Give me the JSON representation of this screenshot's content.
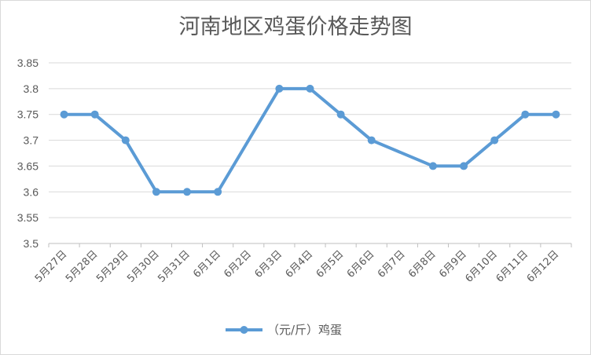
{
  "chart_data": {
    "type": "line",
    "title": "河南地区鸡蛋价格走势图",
    "categories": [
      "5月27日",
      "5月28日",
      "5月29日",
      "5月30日",
      "5月31日",
      "6月1日",
      "6月2日",
      "6月3日",
      "6月4日",
      "6月5日",
      "6月6日",
      "6月7日",
      "6月8日",
      "6月9日",
      "6月10日",
      "6月11日",
      "6月12日"
    ],
    "series": [
      {
        "name": "（元/斤）鸡蛋",
        "values": [
          3.75,
          3.75,
          3.7,
          3.6,
          3.6,
          3.6,
          null,
          3.8,
          3.8,
          3.75,
          3.7,
          null,
          3.65,
          3.65,
          3.7,
          3.75,
          3.75
        ],
        "color": "#5b9bd5"
      }
    ],
    "ylim": [
      3.5,
      3.85
    ],
    "yticks": [
      "3.5",
      "3.55",
      "3.6",
      "3.65",
      "3.7",
      "3.75",
      "3.8",
      "3.85"
    ],
    "grid": true,
    "legend": "bottom"
  }
}
